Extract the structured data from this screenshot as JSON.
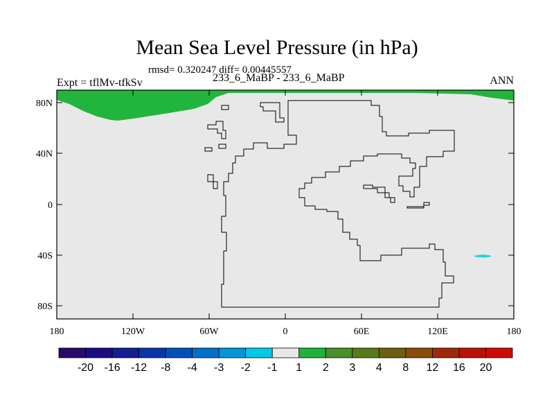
{
  "title": "Mean Sea Level Pressure (in hPa)",
  "stats_line": "rmsd= 0.320247 diff= 0.00445557",
  "experiment_label": "Expt = tflMv-tfkSv",
  "comparison_label": "233_6_MaBP - 233_6_MaBP",
  "season": "ANN",
  "map": {
    "projection": "cylindrical equidistant",
    "lon_range": [
      -180,
      180
    ],
    "lat_range": [
      -90,
      90
    ],
    "x_tick_labels": [
      "180",
      "120W",
      "60W",
      "0",
      "60E",
      "120E",
      "180"
    ],
    "y_tick_labels": [
      "80N",
      "40N",
      "0",
      "40S",
      "80S"
    ],
    "background_level": "-1 to 1"
  },
  "colorbar": {
    "levels": [
      "-20",
      "-16",
      "-12",
      "-8",
      "-4",
      "-3",
      "-2",
      "-1",
      "1",
      "2",
      "3",
      "4",
      "8",
      "12",
      "16",
      "20"
    ],
    "colors": [
      "#2a0a6a",
      "#1b0d80",
      "#141e94",
      "#0a35a8",
      "#0050b8",
      "#0070c8",
      "#0096d8",
      "#00c8e6",
      "#e8e8e8",
      "#1fb33a",
      "#4a8f2a",
      "#5a7a1a",
      "#6b6010",
      "#8a4a0a",
      "#a02a08",
      "#b81208",
      "#d00a00"
    ]
  },
  "colors": {
    "positive_anomaly": "#22b53d",
    "negative_anomaly": "#1ad4e0",
    "background": "#e8e8e8",
    "coastline": "#000000"
  }
}
